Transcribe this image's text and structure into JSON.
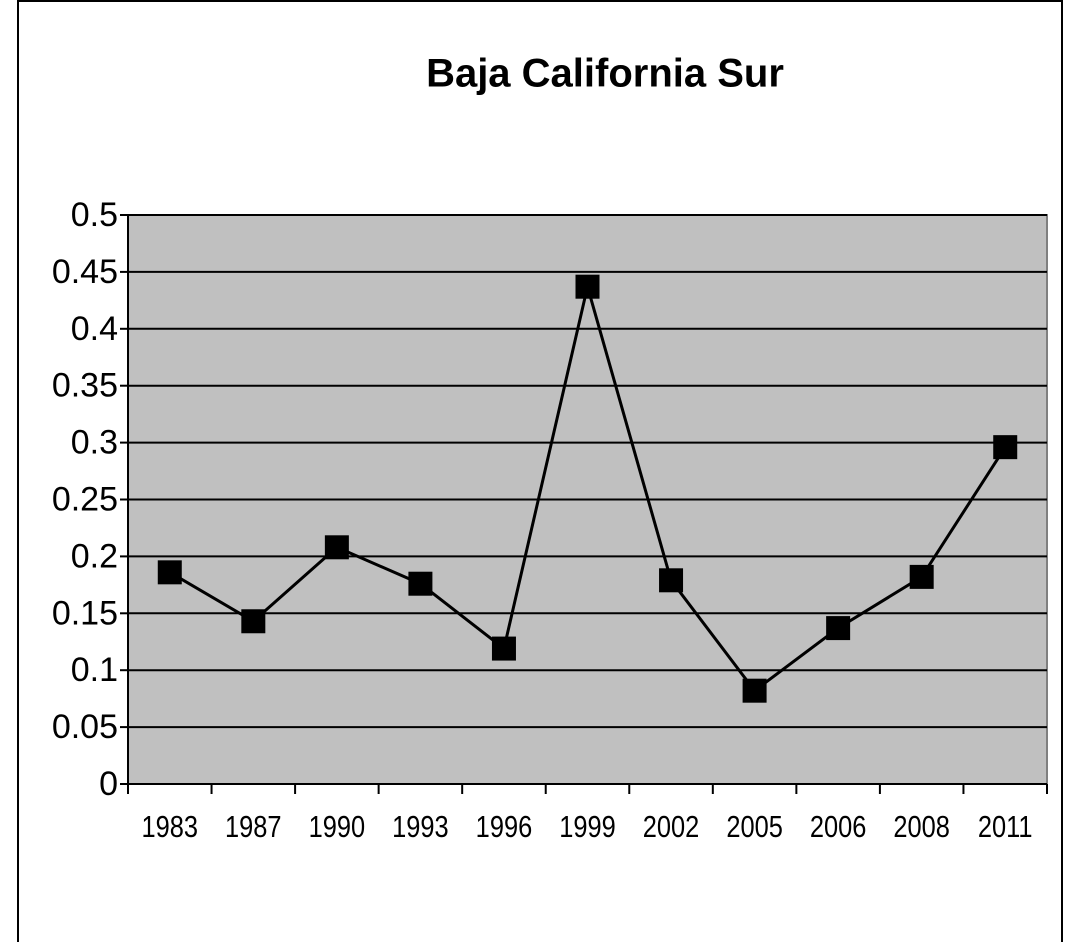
{
  "chart_data": {
    "type": "line",
    "title": "Baja California Sur",
    "categories": [
      "1983",
      "1987",
      "1990",
      "1993",
      "1996",
      "1999",
      "2002",
      "2005",
      "2006",
      "2008",
      "2011"
    ],
    "series": [
      {
        "name": "Baja California Sur",
        "color": "#000000",
        "values": [
          0.186,
          0.143,
          0.208,
          0.176,
          0.119,
          0.437,
          0.179,
          0.082,
          0.137,
          0.182,
          0.296
        ]
      }
    ],
    "ylim": [
      0,
      0.5
    ],
    "yticks": [
      0,
      0.05,
      0.1,
      0.15,
      0.2,
      0.25,
      0.3,
      0.35,
      0.4,
      0.45,
      0.5
    ],
    "grid": true,
    "legend": false
  }
}
